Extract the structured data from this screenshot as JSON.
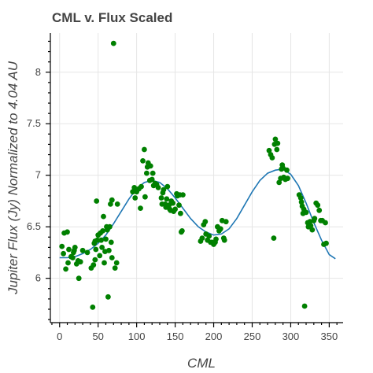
{
  "chart_data": {
    "type": "scatter",
    "title": "CML v. Flux Scaled",
    "xlabel": "CML",
    "ylabel": "Jupiter Flux (Jy) Normalized to 4.04 AU",
    "xlim": [
      -12,
      368
    ],
    "ylim": [
      5.57,
      8.38
    ],
    "x_ticks": [
      0,
      50,
      100,
      150,
      200,
      250,
      300,
      350
    ],
    "y_ticks": [
      6,
      6.5,
      7,
      7.5,
      8
    ],
    "grid": true,
    "legend": "none",
    "series": [
      {
        "kind": "scatter",
        "color": "#008000",
        "points": [
          [
            3,
            6.31
          ],
          [
            5,
            6.24
          ],
          [
            6,
            6.44
          ],
          [
            8,
            6.09
          ],
          [
            10,
            6.45
          ],
          [
            11,
            6.15
          ],
          [
            12,
            6.28
          ],
          [
            15,
            6.21
          ],
          [
            17,
            6.2
          ],
          [
            18,
            6.25
          ],
          [
            19,
            6.27
          ],
          [
            20,
            6.3
          ],
          [
            22,
            6.14
          ],
          [
            24,
            6.17
          ],
          [
            25,
            6.0
          ],
          [
            27,
            6.16
          ],
          [
            30,
            6.27
          ],
          [
            36,
            6.25
          ],
          [
            41,
            6.1
          ],
          [
            43,
            5.72
          ],
          [
            44,
            6.13
          ],
          [
            45,
            6.34
          ],
          [
            46,
            6.18
          ],
          [
            46,
            6.36
          ],
          [
            47,
            6.28
          ],
          [
            48,
            6.75
          ],
          [
            49,
            6.37
          ],
          [
            50,
            6.42
          ],
          [
            52,
            6.22
          ],
          [
            53,
            6.44
          ],
          [
            54,
            6.37
          ],
          [
            55,
            6.3
          ],
          [
            56,
            6.46
          ],
          [
            57,
            6.6
          ],
          [
            58,
            6.15
          ],
          [
            59,
            6.26
          ],
          [
            60,
            6.38
          ],
          [
            61,
            6.5
          ],
          [
            62,
            6.47
          ],
          [
            63,
            5.82
          ],
          [
            64,
            6.27
          ],
          [
            65,
            6.5
          ],
          [
            66,
            6.72
          ],
          [
            67,
            6.35
          ],
          [
            68,
            6.2
          ],
          [
            68,
            6.76
          ],
          [
            70,
            8.28
          ],
          [
            72,
            6.1
          ],
          [
            74,
            6.15
          ],
          [
            75,
            6.72
          ],
          [
            95,
            6.84
          ],
          [
            97,
            6.88
          ],
          [
            98,
            6.78
          ],
          [
            100,
            6.84
          ],
          [
            101,
            6.86
          ],
          [
            103,
            6.87
          ],
          [
            105,
            6.68
          ],
          [
            106,
            6.89
          ],
          [
            108,
            7.14
          ],
          [
            110,
            7.25
          ],
          [
            111,
            6.79
          ],
          [
            113,
            7.02
          ],
          [
            114,
            7.08
          ],
          [
            115,
            7.12
          ],
          [
            117,
            6.95
          ],
          [
            118,
            7.09
          ],
          [
            120,
            6.96
          ],
          [
            121,
            7.02
          ],
          [
            122,
            6.9
          ],
          [
            124,
            6.92
          ],
          [
            126,
            6.91
          ],
          [
            128,
            6.88
          ],
          [
            132,
            6.78
          ],
          [
            133,
            6.72
          ],
          [
            134,
            6.83
          ],
          [
            135,
            6.86
          ],
          [
            137,
            6.72
          ],
          [
            138,
            6.69
          ],
          [
            139,
            6.77
          ],
          [
            140,
            6.89
          ],
          [
            142,
            6.71
          ],
          [
            143,
            6.67
          ],
          [
            144,
            6.66
          ],
          [
            145,
            6.75
          ],
          [
            147,
            6.73
          ],
          [
            148,
            6.65
          ],
          [
            150,
            6.67
          ],
          [
            152,
            6.82
          ],
          [
            153,
            6.8
          ],
          [
            155,
            6.71
          ],
          [
            156,
            6.81
          ],
          [
            157,
            6.63
          ],
          [
            158,
            6.45
          ],
          [
            159,
            6.46
          ],
          [
            160,
            6.81
          ],
          [
            183,
            6.36
          ],
          [
            185,
            6.39
          ],
          [
            187,
            6.52
          ],
          [
            189,
            6.55
          ],
          [
            190,
            6.43
          ],
          [
            192,
            6.37
          ],
          [
            194,
            6.41
          ],
          [
            196,
            6.35
          ],
          [
            198,
            6.35
          ],
          [
            200,
            6.33
          ],
          [
            202,
            6.35
          ],
          [
            203,
            6.38
          ],
          [
            205,
            6.5
          ],
          [
            207,
            6.46
          ],
          [
            209,
            6.48
          ],
          [
            211,
            6.56
          ],
          [
            213,
            6.39
          ],
          [
            214,
            6.37
          ],
          [
            216,
            6.55
          ],
          [
            272,
            7.24
          ],
          [
            274,
            7.2
          ],
          [
            276,
            7.17
          ],
          [
            278,
            6.39
          ],
          [
            279,
            7.3
          ],
          [
            280,
            7.35
          ],
          [
            282,
            7.25
          ],
          [
            283,
            7.31
          ],
          [
            285,
            6.93
          ],
          [
            287,
            6.97
          ],
          [
            288,
            7.06
          ],
          [
            289,
            7.1
          ],
          [
            290,
            7.07
          ],
          [
            291,
            6.98
          ],
          [
            293,
            6.96
          ],
          [
            295,
            7.05
          ],
          [
            296,
            6.97
          ],
          [
            311,
            6.81
          ],
          [
            313,
            6.78
          ],
          [
            314,
            6.74
          ],
          [
            315,
            6.7
          ],
          [
            316,
            6.63
          ],
          [
            317,
            6.67
          ],
          [
            318,
            5.73
          ],
          [
            320,
            6.64
          ],
          [
            322,
            6.54
          ],
          [
            323,
            6.5
          ],
          [
            325,
            6.55
          ],
          [
            326,
            6.51
          ],
          [
            328,
            6.47
          ],
          [
            330,
            6.56
          ],
          [
            331,
            6.58
          ],
          [
            333,
            6.73
          ],
          [
            335,
            6.71
          ],
          [
            337,
            6.66
          ],
          [
            339,
            6.56
          ],
          [
            341,
            6.56
          ],
          [
            343,
            6.33
          ],
          [
            345,
            6.54
          ],
          [
            346,
            6.34
          ]
        ]
      },
      {
        "kind": "line",
        "color": "#1f77b4",
        "points": [
          [
            0,
            6.2
          ],
          [
            10,
            6.2
          ],
          [
            20,
            6.21
          ],
          [
            30,
            6.24
          ],
          [
            40,
            6.28
          ],
          [
            50,
            6.34
          ],
          [
            60,
            6.42
          ],
          [
            70,
            6.53
          ],
          [
            80,
            6.65
          ],
          [
            90,
            6.77
          ],
          [
            100,
            6.87
          ],
          [
            110,
            6.93
          ],
          [
            120,
            6.95
          ],
          [
            130,
            6.93
          ],
          [
            140,
            6.87
          ],
          [
            150,
            6.78
          ],
          [
            160,
            6.68
          ],
          [
            170,
            6.58
          ],
          [
            180,
            6.5
          ],
          [
            190,
            6.45
          ],
          [
            200,
            6.42
          ],
          [
            210,
            6.43
          ],
          [
            220,
            6.48
          ],
          [
            230,
            6.58
          ],
          [
            240,
            6.71
          ],
          [
            250,
            6.84
          ],
          [
            260,
            6.95
          ],
          [
            270,
            7.02
          ],
          [
            280,
            7.05
          ],
          [
            290,
            7.06
          ],
          [
            300,
            7.01
          ],
          [
            310,
            6.9
          ],
          [
            320,
            6.73
          ],
          [
            330,
            6.54
          ],
          [
            340,
            6.37
          ],
          [
            350,
            6.23
          ],
          [
            358,
            6.19
          ]
        ]
      }
    ]
  }
}
